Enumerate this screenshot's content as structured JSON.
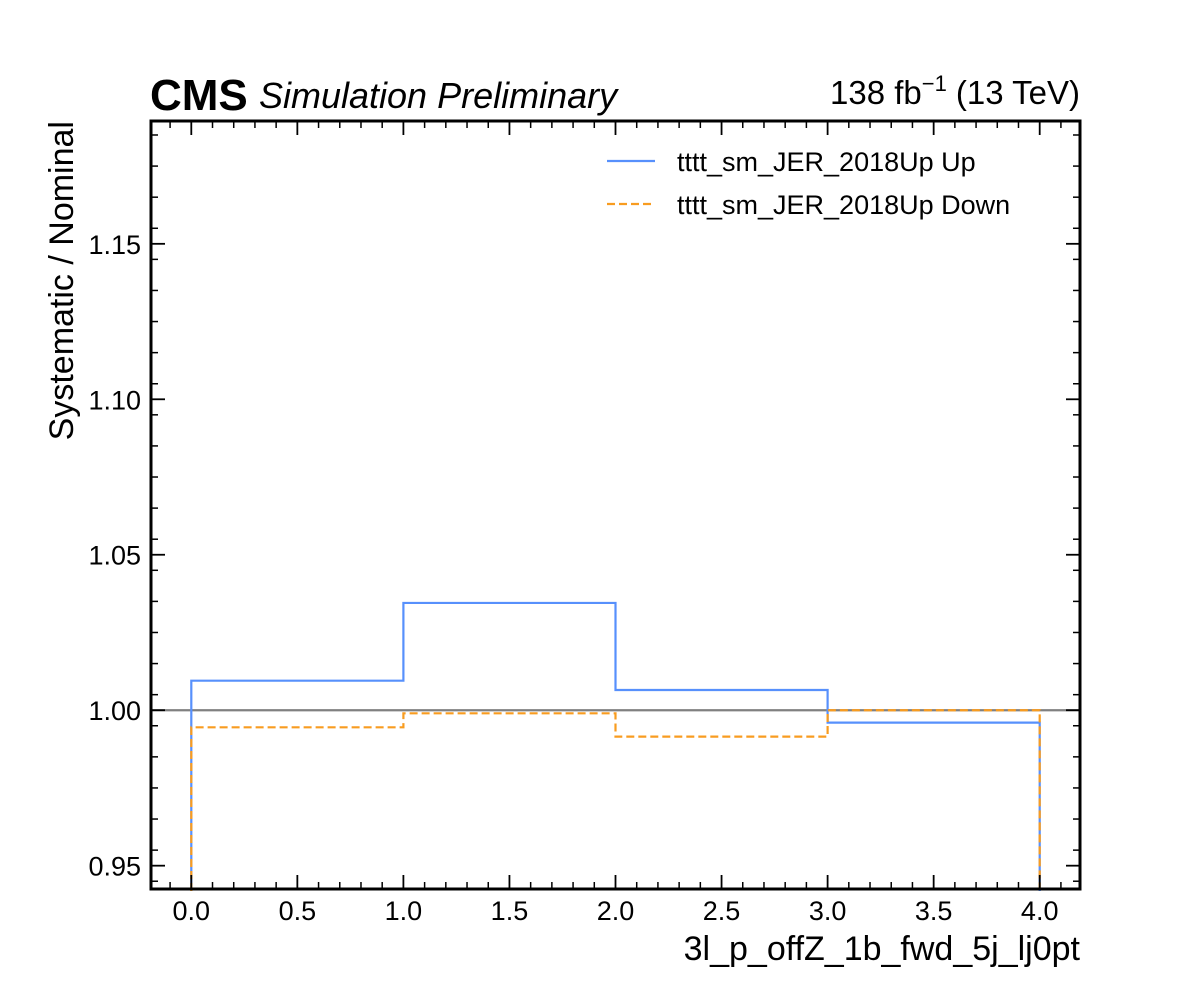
{
  "header": {
    "experiment": "CMS",
    "status": "Simulation Preliminary",
    "lumi_value": "138 fb",
    "lumi_exponent": "−1",
    "energy": "(13 TeV)"
  },
  "chart_data": {
    "type": "line",
    "style": "step",
    "xlabel": "3l_p_offZ_1b_fwd_5j_lj0pt",
    "ylabel": "Systematic / Nominal",
    "xlim": [
      -0.19,
      4.19
    ],
    "ylim": [
      0.9425,
      1.1895
    ],
    "x_ticks": [
      0.0,
      0.5,
      1.0,
      1.5,
      2.0,
      2.5,
      3.0,
      3.5,
      4.0
    ],
    "x_tick_labels": [
      "0.0",
      "0.5",
      "1.0",
      "1.5",
      "2.0",
      "2.5",
      "3.0",
      "3.5",
      "4.0"
    ],
    "y_ticks": [
      0.95,
      1.0,
      1.05,
      1.1,
      1.15
    ],
    "y_tick_labels": [
      "0.95",
      "1.00",
      "1.05",
      "1.10",
      "1.15"
    ],
    "bin_edges": [
      0,
      1,
      2,
      3,
      4
    ],
    "reference_line": 1.0,
    "grid": false,
    "legend_position": "top-right",
    "series": [
      {
        "name": "tttt_sm_JER_2018Up Up",
        "values": [
          1.0095,
          1.0345,
          1.0065,
          0.996
        ],
        "color": "#5790fc",
        "dash": "solid"
      },
      {
        "name": "tttt_sm_JER_2018Up Down",
        "values": [
          0.9945,
          0.999,
          0.9915,
          1.0
        ],
        "color": "#f89c20",
        "dash": "dashed"
      }
    ],
    "reference_color": "#808080"
  }
}
